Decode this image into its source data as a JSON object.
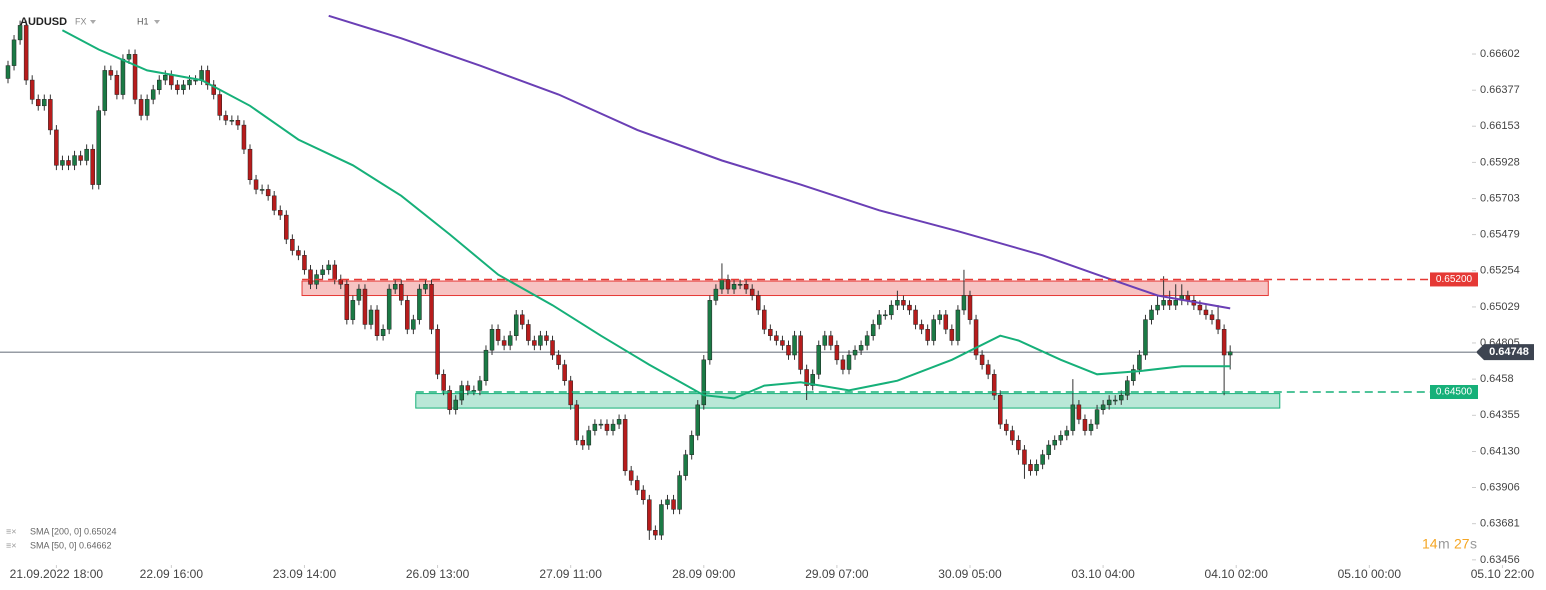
{
  "chart_data": {
    "type": "candlestick",
    "symbol": "AUDUSD",
    "market": "FX",
    "timeframe": "H1",
    "timer": [
      "14",
      "m",
      "27",
      "s"
    ],
    "ylim": [
      0.63424,
      0.66938
    ],
    "yticks": [
      0.63456,
      0.63681,
      0.63906,
      {
        "value": 0.6413,
        "label": "0.64130"
      },
      0.64355,
      0.6458,
      0.64805,
      0.65029,
      0.65254,
      0.65479,
      0.65703,
      0.65928,
      0.66153,
      0.66377,
      0.66602
    ],
    "xlim": [
      -1.32,
      254.2
    ],
    "xticks": [
      {
        "value": 8,
        "label": "21.09.2022 18:00"
      },
      {
        "value": 27,
        "label": "22.09 16:00"
      },
      {
        "value": 49,
        "label": "23.09 14:00"
      },
      {
        "value": 71,
        "label": "26.09 13:00"
      },
      {
        "value": 93,
        "label": "27.09 11:00"
      },
      {
        "value": 115,
        "label": "28.09 09:00"
      },
      {
        "value": 137,
        "label": "29.09 07:00"
      },
      {
        "value": 159,
        "label": "30.09 05:00"
      },
      {
        "value": 181,
        "label": "03.10 04:00"
      },
      {
        "value": 203,
        "label": "04.10 02:00"
      },
      {
        "value": 225,
        "label": "05.10 00:00"
      },
      {
        "value": 247,
        "label": "05.10 22:00"
      }
    ],
    "up_color": "#1b7a45",
    "down_color": "#b71c1c",
    "open": [
      0.6645,
      0.6653,
      0.6669,
      0.6678,
      0.6644,
      0.6632,
      0.6628,
      0.6632,
      0.6613,
      0.6591,
      0.6594,
      0.6591,
      0.6597,
      0.6594,
      0.6601,
      0.6579,
      0.6625,
      0.665,
      0.6647,
      0.6635,
      0.6657,
      0.666,
      0.6632,
      0.6622,
      0.6632,
      0.6638,
      0.6644,
      0.6647,
      0.6641,
      0.6638,
      0.6641,
      0.6644,
      0.6644,
      0.665,
      0.6641,
      0.6635,
      0.6622,
      0.6619,
      0.6619,
      0.6616,
      0.6601,
      0.6582,
      0.6576,
      0.6576,
      0.6572,
      0.6563,
      0.656,
      0.6545,
      0.6538,
      0.6535,
      0.6526,
      0.6517,
      0.6523,
      0.6526,
      0.6529,
      0.652,
      0.6517,
      0.6495,
      0.6507,
      0.6514,
      0.6492,
      0.6501,
      0.6485,
      0.6489,
      0.6514,
      0.6517,
      0.6507,
      0.6489,
      0.6495,
      0.6514,
      0.6517,
      0.6489,
      0.6461,
      0.6451,
      0.6439,
      0.6445,
      0.6454,
      0.6451,
      0.6451,
      0.6457,
      0.6476,
      0.6489,
      0.6482,
      0.6479,
      0.6485,
      0.6498,
      0.6492,
      0.6482,
      0.6479,
      0.6485,
      0.6482,
      0.6473,
      0.6467,
      0.6457,
      0.6442,
      0.642,
      0.6417,
      0.6426,
      0.643,
      0.643,
      0.6426,
      0.643,
      0.6433,
      0.6401,
      0.6395,
      0.6389,
      0.6383,
      0.6364,
      0.6361,
      0.638,
      0.6383,
      0.6377,
      0.6398,
      0.6411,
      0.6423,
      0.6442,
      0.647,
      0.6507,
      0.6514,
      0.652,
      0.6514,
      0.6517,
      0.6517,
      0.6514,
      0.651,
      0.6501,
      0.6489,
      0.6485,
      0.6482,
      0.6479,
      0.6473,
      0.6485,
      0.6464,
      0.6454,
      0.6461,
      0.6479,
      0.6485,
      0.6479,
      0.647,
      0.6464,
      0.6473,
      0.6476,
      0.6479,
      0.6485,
      0.6492,
      0.6498,
      0.6498,
      0.6504,
      0.6507,
      0.6504,
      0.6501,
      0.6492,
      0.6489,
      0.6482,
      0.6495,
      0.6498,
      0.6489,
      0.6482,
      0.6501,
      0.651,
      0.6495,
      0.6473,
      0.6467,
      0.6461,
      0.6448,
      0.643,
      0.6426,
      0.642,
      0.6414,
      0.6405,
      0.6401,
      0.6405,
      0.6411,
      0.6417,
      0.642,
      0.6423,
      0.6426,
      0.6442,
      0.6433,
      0.6426,
      0.643,
      0.6439,
      0.6442,
      0.6445,
      0.6445,
      0.6448,
      0.6457,
      0.6464,
      0.6473,
      0.6495,
      0.6501,
      0.6504,
      0.6507,
      0.6504,
      0.6507,
      0.651,
      0.6507,
      0.6504,
      0.6501,
      0.6498,
      0.6495,
      0.6489,
      0.6473
    ],
    "high": [
      0.6656,
      0.6672,
      0.6681,
      0.6681,
      0.6647,
      0.6635,
      0.6635,
      0.6635,
      0.6616,
      0.6597,
      0.6597,
      0.66,
      0.66,
      0.6604,
      0.6604,
      0.6628,
      0.6653,
      0.6653,
      0.665,
      0.666,
      0.6663,
      0.6663,
      0.6635,
      0.6635,
      0.6641,
      0.6647,
      0.665,
      0.665,
      0.6644,
      0.6644,
      0.6647,
      0.6647,
      0.6653,
      0.6653,
      0.6644,
      0.6638,
      0.6625,
      0.6622,
      0.6622,
      0.6619,
      0.6604,
      0.6585,
      0.6579,
      0.6579,
      0.6575,
      0.6566,
      0.6563,
      0.6548,
      0.6541,
      0.6538,
      0.6529,
      0.6526,
      0.6529,
      0.6532,
      0.6532,
      0.6523,
      0.652,
      0.651,
      0.6517,
      0.6517,
      0.6504,
      0.6504,
      0.6492,
      0.6517,
      0.652,
      0.652,
      0.651,
      0.6498,
      0.6517,
      0.652,
      0.652,
      0.6492,
      0.6464,
      0.6454,
      0.6448,
      0.6457,
      0.6457,
      0.6454,
      0.646,
      0.6479,
      0.6492,
      0.6492,
      0.6485,
      0.6488,
      0.6501,
      0.6501,
      0.6495,
      0.6485,
      0.6488,
      0.6488,
      0.6485,
      0.6476,
      0.647,
      0.646,
      0.6445,
      0.6423,
      0.6429,
      0.6433,
      0.6433,
      0.6433,
      0.6433,
      0.6436,
      0.6436,
      0.6404,
      0.6398,
      0.6392,
      0.6386,
      0.6367,
      0.6383,
      0.6386,
      0.6386,
      0.6401,
      0.6414,
      0.6426,
      0.6445,
      0.6473,
      0.651,
      0.6517,
      0.653,
      0.6523,
      0.652,
      0.652,
      0.652,
      0.6517,
      0.6513,
      0.6504,
      0.6492,
      0.6488,
      0.6485,
      0.6482,
      0.6488,
      0.6488,
      0.6467,
      0.6464,
      0.6482,
      0.6488,
      0.6488,
      0.6482,
      0.6473,
      0.6476,
      0.6479,
      0.6482,
      0.6488,
      0.6495,
      0.6501,
      0.6501,
      0.6507,
      0.6513,
      0.651,
      0.6507,
      0.6504,
      0.6495,
      0.6492,
      0.6498,
      0.6501,
      0.6501,
      0.6492,
      0.6504,
      0.6526,
      0.6513,
      0.6498,
      0.6476,
      0.647,
      0.6464,
      0.6451,
      0.6433,
      0.6429,
      0.6423,
      0.6417,
      0.6408,
      0.6408,
      0.6414,
      0.642,
      0.6423,
      0.6426,
      0.6429,
      0.6458,
      0.6445,
      0.6436,
      0.6433,
      0.6442,
      0.6445,
      0.6448,
      0.6448,
      0.6451,
      0.646,
      0.6467,
      0.6476,
      0.6498,
      0.6504,
      0.651,
      0.6522,
      0.6513,
      0.6517,
      0.6517,
      0.6513,
      0.651,
      0.6507,
      0.6504,
      0.6501,
      0.6504,
      0.6492,
      0.6479
    ],
    "low": [
      0.6642,
      0.665,
      0.6666,
      0.6641,
      0.6629,
      0.6625,
      0.6625,
      0.661,
      0.6588,
      0.6588,
      0.6588,
      0.6588,
      0.6591,
      0.6591,
      0.6576,
      0.6576,
      0.6622,
      0.6644,
      0.6632,
      0.6632,
      0.6654,
      0.6629,
      0.6619,
      0.6619,
      0.6629,
      0.6635,
      0.6641,
      0.6638,
      0.6635,
      0.6635,
      0.6638,
      0.6641,
      0.6641,
      0.6638,
      0.6632,
      0.6619,
      0.6616,
      0.6616,
      0.6613,
      0.6598,
      0.6579,
      0.6573,
      0.6573,
      0.6569,
      0.656,
      0.6557,
      0.6542,
      0.6535,
      0.6532,
      0.6523,
      0.6514,
      0.6514,
      0.652,
      0.6523,
      0.6517,
      0.6514,
      0.6492,
      0.6492,
      0.6504,
      0.6489,
      0.6489,
      0.6482,
      0.6482,
      0.6486,
      0.6511,
      0.6504,
      0.6486,
      0.6486,
      0.6492,
      0.6511,
      0.6486,
      0.6458,
      0.6448,
      0.6436,
      0.6436,
      0.6442,
      0.6448,
      0.6448,
      0.6448,
      0.6454,
      0.6473,
      0.6479,
      0.6476,
      0.6476,
      0.6482,
      0.6489,
      0.6479,
      0.6476,
      0.6476,
      0.6479,
      0.647,
      0.6464,
      0.6454,
      0.6439,
      0.6417,
      0.6414,
      0.6414,
      0.6423,
      0.6427,
      0.6423,
      0.6423,
      0.6427,
      0.6398,
      0.6392,
      0.6386,
      0.638,
      0.6358,
      0.6358,
      0.6358,
      0.6377,
      0.6374,
      0.6374,
      0.6395,
      0.6408,
      0.642,
      0.6439,
      0.6467,
      0.6504,
      0.6511,
      0.6511,
      0.6511,
      0.6514,
      0.6511,
      0.6507,
      0.6498,
      0.6486,
      0.6482,
      0.6479,
      0.6476,
      0.647,
      0.647,
      0.6461,
      0.6445,
      0.6451,
      0.6458,
      0.6476,
      0.6476,
      0.6467,
      0.6461,
      0.6461,
      0.647,
      0.6473,
      0.6476,
      0.6482,
      0.6489,
      0.6495,
      0.6495,
      0.6501,
      0.6501,
      0.6498,
      0.6489,
      0.6486,
      0.6479,
      0.6479,
      0.6492,
      0.6486,
      0.6479,
      0.6479,
      0.6498,
      0.6492,
      0.647,
      0.6464,
      0.6458,
      0.6445,
      0.6427,
      0.6423,
      0.6417,
      0.6411,
      0.6396,
      0.6398,
      0.6398,
      0.6402,
      0.6408,
      0.6414,
      0.6417,
      0.642,
      0.6423,
      0.643,
      0.6423,
      0.6423,
      0.6427,
      0.6436,
      0.6439,
      0.6442,
      0.6442,
      0.6445,
      0.6454,
      0.6461,
      0.647,
      0.6492,
      0.6498,
      0.6501,
      0.6501,
      0.6501,
      0.6504,
      0.6504,
      0.6501,
      0.6498,
      0.6495,
      0.6492,
      0.6486,
      0.6448,
      0.6464
    ],
    "close": [
      0.6653,
      0.6669,
      0.6678,
      0.6644,
      0.6632,
      0.6628,
      0.6632,
      0.6613,
      0.6591,
      0.6594,
      0.6591,
      0.6597,
      0.6594,
      0.6601,
      0.6579,
      0.6625,
      0.665,
      0.6647,
      0.6635,
      0.6657,
      0.666,
      0.6632,
      0.6622,
      0.6632,
      0.6638,
      0.6644,
      0.6647,
      0.6641,
      0.6638,
      0.6641,
      0.6644,
      0.6644,
      0.665,
      0.6641,
      0.6635,
      0.6622,
      0.6619,
      0.6619,
      0.6616,
      0.6601,
      0.6582,
      0.6576,
      0.6576,
      0.6572,
      0.6563,
      0.656,
      0.6545,
      0.6538,
      0.6535,
      0.6526,
      0.6517,
      0.6523,
      0.6526,
      0.6529,
      0.652,
      0.6517,
      0.6495,
      0.6507,
      0.6514,
      0.6492,
      0.6501,
      0.6485,
      0.6489,
      0.6514,
      0.6517,
      0.6507,
      0.6489,
      0.6495,
      0.6514,
      0.6517,
      0.6489,
      0.6461,
      0.6451,
      0.6439,
      0.6445,
      0.6454,
      0.6451,
      0.6451,
      0.6457,
      0.6476,
      0.6489,
      0.6482,
      0.6479,
      0.6485,
      0.6498,
      0.6492,
      0.6482,
      0.6479,
      0.6485,
      0.6482,
      0.6473,
      0.6467,
      0.6457,
      0.6442,
      0.642,
      0.6417,
      0.6426,
      0.643,
      0.643,
      0.6426,
      0.643,
      0.6433,
      0.6401,
      0.6395,
      0.6389,
      0.6383,
      0.6364,
      0.6361,
      0.638,
      0.6383,
      0.6377,
      0.6398,
      0.6411,
      0.6423,
      0.6442,
      0.647,
      0.6507,
      0.6514,
      0.652,
      0.6514,
      0.6517,
      0.6517,
      0.6514,
      0.651,
      0.6501,
      0.6489,
      0.6485,
      0.6482,
      0.6479,
      0.6473,
      0.6485,
      0.6464,
      0.6454,
      0.6461,
      0.6479,
      0.6485,
      0.6479,
      0.647,
      0.6464,
      0.6473,
      0.6476,
      0.6479,
      0.6485,
      0.6492,
      0.6498,
      0.6498,
      0.6504,
      0.6507,
      0.6504,
      0.6501,
      0.6492,
      0.6489,
      0.6482,
      0.6495,
      0.6498,
      0.6489,
      0.6482,
      0.6501,
      0.651,
      0.6495,
      0.6473,
      0.6467,
      0.6461,
      0.6448,
      0.643,
      0.6426,
      0.642,
      0.6414,
      0.6405,
      0.6401,
      0.6405,
      0.6411,
      0.6417,
      0.642,
      0.6423,
      0.6426,
      0.6442,
      0.6433,
      0.6426,
      0.643,
      0.6439,
      0.6442,
      0.6445,
      0.6445,
      0.6448,
      0.6457,
      0.6464,
      0.6473,
      0.6495,
      0.6501,
      0.6504,
      0.6507,
      0.6504,
      0.6507,
      0.651,
      0.6507,
      0.6504,
      0.6501,
      0.6498,
      0.6495,
      0.6489,
      0.6473,
      0.6475
    ],
    "series": [
      {
        "name": "SMA [200, 0] 0.65024",
        "color": "#6a3fb5",
        "x": [
          53,
          65,
          78,
          91,
          104,
          118,
          131,
          144,
          157,
          171,
          180,
          190,
          202
        ],
        "values": [
          0.6684,
          0.667,
          0.6653,
          0.6635,
          0.6613,
          0.6594,
          0.6579,
          0.6563,
          0.655,
          0.6535,
          0.6523,
          0.651,
          0.6502
        ]
      },
      {
        "name": "SMA [50, 0] 0.64662",
        "color": "#16b079",
        "x": [
          9,
          15,
          23,
          32,
          40,
          48,
          57,
          65,
          73,
          81,
          90,
          98,
          106,
          115,
          120,
          125,
          131,
          139,
          147,
          156,
          164,
          167,
          174,
          180,
          187,
          194,
          202
        ],
        "values": [
          0.6675,
          0.6663,
          0.665,
          0.6644,
          0.6628,
          0.6607,
          0.6591,
          0.6572,
          0.6548,
          0.6523,
          0.6504,
          0.6485,
          0.6467,
          0.6448,
          0.6446,
          0.6454,
          0.6456,
          0.6451,
          0.6457,
          0.647,
          0.6485,
          0.6482,
          0.647,
          0.6461,
          0.6463,
          0.6466,
          0.6466
        ]
      }
    ],
    "zones": [
      {
        "x": [
          48.6,
          208.3
        ],
        "y": [
          0.651,
          0.6519
        ],
        "color": "#e53935"
      },
      {
        "x": [
          67.4,
          210.2
        ],
        "y": [
          0.644,
          0.6449
        ],
        "color": "#16b079"
      }
    ],
    "levels": [
      {
        "value": 0.652,
        "label": "0.65200",
        "color": "#e53935"
      },
      {
        "value": 0.645,
        "label": "0.64500",
        "color": "#16b079"
      }
    ],
    "last_price": 0.64748
  }
}
